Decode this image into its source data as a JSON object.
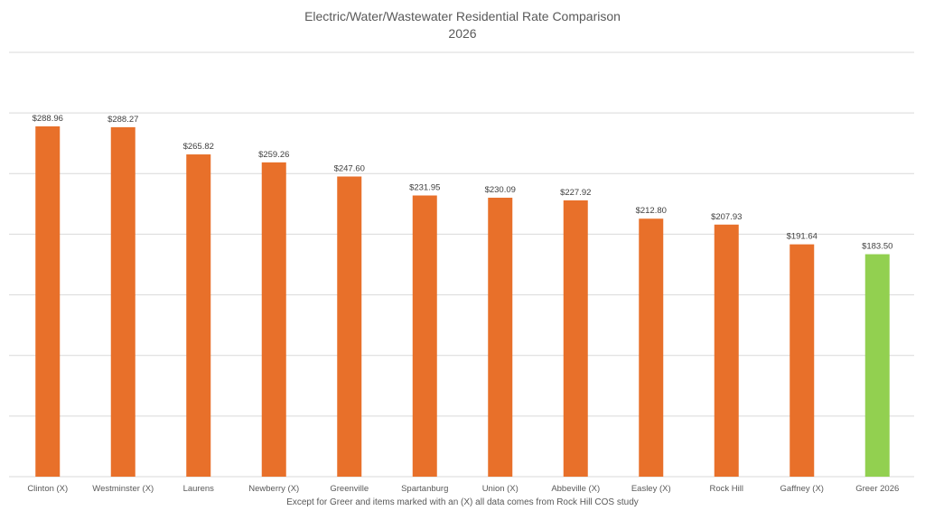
{
  "chart_data": {
    "type": "bar",
    "title": "Electric/Water/Wastewater Residential Rate Comparison",
    "subtitle": "2026",
    "xlabel": "Except for Greer and items marked with an (X) all data comes from Rock Hill COS study",
    "ylabel": "",
    "categories": [
      "Clinton (X)",
      "Westminster (X)",
      "Laurens",
      "Newberry (X)",
      "Greenville",
      "Spartanburg",
      "Union (X)",
      "Abbeville (X)",
      "Easley (X)",
      "Rock Hill",
      "Gaffney (X)",
      "Greer 2026"
    ],
    "values": [
      288.96,
      288.27,
      265.82,
      259.26,
      247.6,
      231.95,
      230.09,
      227.92,
      212.8,
      207.93,
      191.64,
      183.5
    ],
    "data_labels": [
      "$288.96",
      "$288.27",
      "$265.82",
      "$259.26",
      "$247.60",
      "$231.95",
      "$230.09",
      "$227.92",
      "$212.80",
      "$207.93",
      "$191.64",
      "$183.50"
    ],
    "colors": [
      "#E8702A",
      "#E8702A",
      "#E8702A",
      "#E8702A",
      "#E8702A",
      "#E8702A",
      "#E8702A",
      "#E8702A",
      "#E8702A",
      "#E8702A",
      "#E8702A",
      "#92D050"
    ],
    "ylim": [
      0,
      350
    ],
    "ytick_step": 50,
    "y_tick_labels_shown": false,
    "grid": true,
    "legend": "none"
  }
}
